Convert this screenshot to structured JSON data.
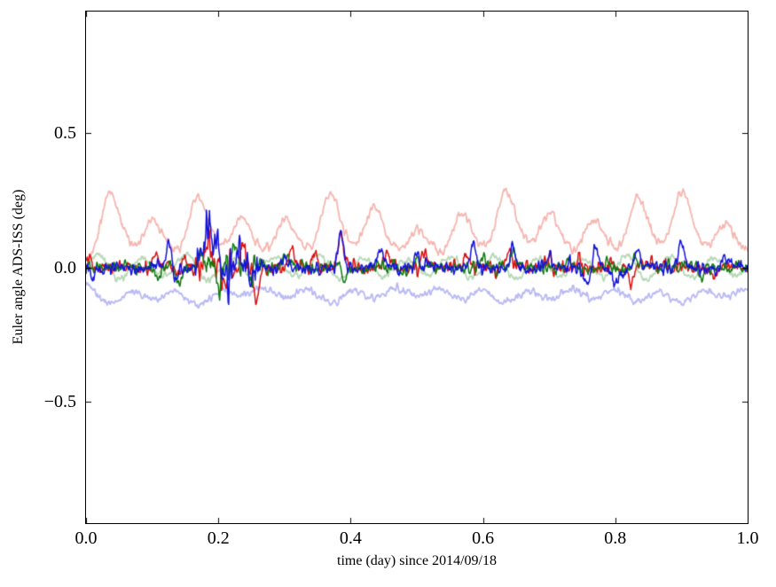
{
  "window": {
    "background": "#ffffff",
    "axis_color": "#000000"
  },
  "chart_data": {
    "type": "line",
    "title": "",
    "xlabel": "time (day) since 2014/09/18",
    "ylabel": "Euler angle ADS-ISS (deg)",
    "xlim": [
      0.0,
      1.0
    ],
    "ylim": [
      -0.95,
      0.95
    ],
    "grid": false,
    "legend": "none",
    "tick_length": 6,
    "xticks": [
      {
        "value": 0.0,
        "label": "0.0"
      },
      {
        "value": 0.2,
        "label": "0.2"
      },
      {
        "value": 0.4,
        "label": "0.4"
      },
      {
        "value": 0.6,
        "label": "0.6"
      },
      {
        "value": 0.8,
        "label": "0.8"
      },
      {
        "value": 1.0,
        "label": "1.0"
      }
    ],
    "yticks": [
      {
        "value": 0.5,
        "label": "0.5"
      },
      {
        "value": 0.0,
        "label": "0.0"
      },
      {
        "value": -0.5,
        "label": "−0.5"
      }
    ],
    "orbit": {
      "period_day": 0.0665,
      "first_peak_day": 0.035
    },
    "n_points": 1100,
    "seed": 20140918,
    "series": [
      {
        "name": "pale-red-envelope",
        "color": "#f6b6b0",
        "linewidth": 1.8,
        "model": "orbital-bump",
        "baseline": 0.018,
        "sign": 1,
        "sigma_day": 0.013,
        "shoulder": 0.35,
        "noise": 0.008,
        "smooth": 1,
        "orbit_amps": [
          0.21,
          0.12,
          0.2,
          0.13,
          0.13,
          0.21,
          0.16,
          0.1,
          0.15,
          0.22,
          0.15,
          0.13,
          0.2,
          0.21,
          0.11,
          0.12
        ]
      },
      {
        "name": "pale-green-envelope",
        "color": "#b7d8b7",
        "linewidth": 1.8,
        "model": "orbital-wave",
        "baseline": 0.0,
        "sigma_day": 0.016,
        "noise": 0.006,
        "smooth": 1,
        "orbit_amps": [
          0.045,
          0.035,
          0.05,
          0.03,
          0.04,
          0.045,
          0.035,
          0.03,
          0.04,
          0.045,
          0.04,
          0.035,
          0.045,
          0.04,
          0.035,
          0.04
        ]
      },
      {
        "name": "pale-blue-envelope",
        "color": "#b9b9f5",
        "linewidth": 1.8,
        "model": "orbital-bump",
        "baseline": -0.048,
        "sign": -1,
        "sigma_day": 0.018,
        "shoulder": 0.3,
        "noise": 0.007,
        "smooth": 1,
        "orbit_amps": [
          0.07,
          0.05,
          0.07,
          0.04,
          0.05,
          0.065,
          0.05,
          0.04,
          0.055,
          0.065,
          0.05,
          0.05,
          0.06,
          0.065,
          0.045,
          0.05
        ]
      },
      {
        "name": "red",
        "color": "#dd0f0f",
        "linewidth": 1.5,
        "model": "noisy",
        "baseline": 0.0,
        "noise": 0.012,
        "smooth": 1,
        "orbital_wiggle": 0.006,
        "active_region": {
          "from": 0.165,
          "to": 0.26,
          "factor": 2.4
        },
        "spikes": [
          {
            "x": 0.005,
            "h": 0.05
          },
          {
            "x": 0.105,
            "h": 0.05
          },
          {
            "x": 0.15,
            "h": 0.055
          },
          {
            "x": 0.185,
            "h": 0.1
          },
          {
            "x": 0.21,
            "h": -0.055
          },
          {
            "x": 0.235,
            "h": 0.07
          },
          {
            "x": 0.258,
            "h": -0.135
          },
          {
            "x": 0.31,
            "h": 0.065
          },
          {
            "x": 0.345,
            "h": 0.05
          },
          {
            "x": 0.385,
            "h": 0.135
          },
          {
            "x": 0.455,
            "h": 0.05
          },
          {
            "x": 0.51,
            "h": 0.06
          },
          {
            "x": 0.575,
            "h": 0.05
          },
          {
            "x": 0.64,
            "h": 0.06
          },
          {
            "x": 0.7,
            "h": 0.04
          },
          {
            "x": 0.745,
            "h": 0.05
          },
          {
            "x": 0.825,
            "h": -0.05
          },
          {
            "x": 0.875,
            "h": 0.04
          },
          {
            "x": 0.95,
            "h": -0.04
          }
        ]
      },
      {
        "name": "green",
        "color": "#117a11",
        "linewidth": 1.5,
        "model": "noisy",
        "baseline": 0.0,
        "noise": 0.011,
        "smooth": 1,
        "orbital_wiggle": 0.006,
        "active_region": {
          "from": 0.165,
          "to": 0.26,
          "factor": 2.2
        },
        "spikes": [
          {
            "x": 0.11,
            "h": -0.04
          },
          {
            "x": 0.14,
            "h": -0.07
          },
          {
            "x": 0.175,
            "h": 0.05
          },
          {
            "x": 0.2,
            "h": -0.05
          },
          {
            "x": 0.225,
            "h": 0.09
          },
          {
            "x": 0.25,
            "h": -0.04
          },
          {
            "x": 0.3,
            "h": 0.05
          },
          {
            "x": 0.39,
            "h": -0.065
          },
          {
            "x": 0.5,
            "h": 0.04
          },
          {
            "x": 0.6,
            "h": 0.05
          },
          {
            "x": 0.645,
            "h": 0.06
          },
          {
            "x": 0.73,
            "h": 0.04
          },
          {
            "x": 0.83,
            "h": 0.04
          },
          {
            "x": 0.93,
            "h": -0.04
          }
        ]
      },
      {
        "name": "blue",
        "color": "#1212dd",
        "linewidth": 1.5,
        "model": "noisy",
        "baseline": 0.0,
        "noise": 0.012,
        "smooth": 1,
        "orbital_wiggle": 0.006,
        "active_region": {
          "from": 0.165,
          "to": 0.26,
          "factor": 3.0
        },
        "spikes": [
          {
            "x": 0.01,
            "h": -0.04
          },
          {
            "x": 0.125,
            "h": 0.1
          },
          {
            "x": 0.135,
            "h": -0.05
          },
          {
            "x": 0.185,
            "h": 0.16,
            "w": 0.004
          },
          {
            "x": 0.197,
            "h": 0.12
          },
          {
            "x": 0.207,
            "h": -0.06
          },
          {
            "x": 0.23,
            "h": 0.09
          },
          {
            "x": 0.248,
            "h": -0.05
          },
          {
            "x": 0.3,
            "h": 0.04
          },
          {
            "x": 0.385,
            "h": 0.12
          },
          {
            "x": 0.445,
            "h": 0.05
          },
          {
            "x": 0.5,
            "h": 0.05
          },
          {
            "x": 0.585,
            "h": 0.08
          },
          {
            "x": 0.645,
            "h": 0.07
          },
          {
            "x": 0.7,
            "h": 0.05
          },
          {
            "x": 0.76,
            "h": -0.05,
            "w": 0.006
          },
          {
            "x": 0.77,
            "h": 0.09
          },
          {
            "x": 0.8,
            "h": -0.06,
            "w": 0.006
          },
          {
            "x": 0.833,
            "h": 0.07
          },
          {
            "x": 0.9,
            "h": 0.11,
            "w": 0.004
          },
          {
            "x": 0.965,
            "h": 0.05
          }
        ]
      }
    ]
  }
}
